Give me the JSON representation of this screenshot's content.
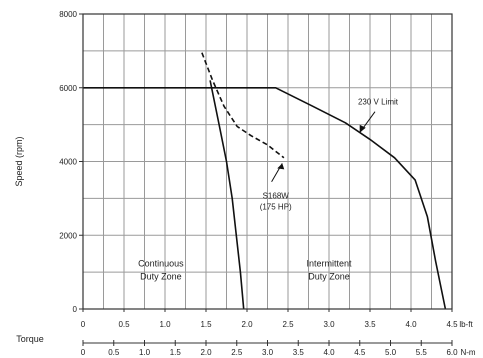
{
  "chart_data": {
    "type": "line",
    "title": "",
    "ylabel": "Speed (rpm)",
    "xlabel_lbft": "lb-ft",
    "xlabel_nm": "N-m",
    "torque_label": "Torque",
    "xlim_lbft": [
      0,
      4.5
    ],
    "xlim_nm": [
      0,
      6.0
    ],
    "ylim": [
      0,
      8000
    ],
    "grid": true,
    "x_ticks_lbft": [
      "0",
      "0.5",
      "1.0",
      "1.5",
      "2.0",
      "2.5",
      "3.0",
      "3.5",
      "4.0",
      "4.5"
    ],
    "x_ticks_nm": [
      "0",
      "0.5",
      "1.0",
      "1.5",
      "2.0",
      "2.5",
      "3.0",
      "3.5",
      "4.0",
      "4.5",
      "5.0",
      "5.5",
      "6.0"
    ],
    "y_ticks": [
      "0",
      "2000",
      "4000",
      "6000",
      "8000"
    ],
    "series": [
      {
        "x": [
          0,
          2.35,
          2.8,
          3.2,
          3.5,
          3.8,
          4.05,
          4.2,
          4.3,
          4.42
        ],
        "y": [
          6000,
          6000,
          5500,
          5050,
          4600,
          4100,
          3500,
          2500,
          1300,
          0
        ],
        "style": "solid"
      },
      {
        "x": [
          1.55,
          1.66,
          1.75,
          1.82,
          1.87,
          1.92,
          1.96
        ],
        "y": [
          6200,
          5000,
          4000,
          3000,
          2000,
          1000,
          0
        ],
        "style": "solid"
      },
      {
        "x": [
          1.45,
          1.58,
          1.72,
          1.88,
          2.05,
          2.25,
          2.45
        ],
        "y": [
          6950,
          6200,
          5500,
          4950,
          4700,
          4450,
          4100
        ],
        "style": "dashed"
      }
    ],
    "annotations": [
      {
        "text": "230 V Limit",
        "x": 3.5,
        "y": 4600
      },
      {
        "text": "S168W",
        "x": 2.45,
        "y": 4100,
        "line2": "(175 HP)"
      }
    ],
    "zones": [
      {
        "line1": "Continuous",
        "line2": "Duty Zone",
        "x": 0.95,
        "y": 1150
      },
      {
        "line1": "Intermittent",
        "line2": "Duty Zone",
        "x": 3.0,
        "y": 1150
      }
    ]
  }
}
